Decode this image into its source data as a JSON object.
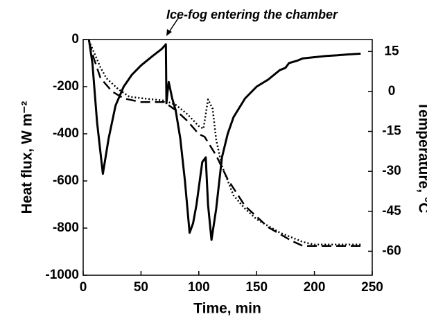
{
  "chart_data": {
    "type": "line",
    "annotation": "Ice-fog entering the chamber",
    "x_label": "Time, min",
    "y_label": "Heat flux, W m⁻²",
    "y2_label": "Temperature, °C",
    "xlim": [
      0,
      250
    ],
    "xticks": [
      0,
      50,
      100,
      150,
      200,
      250
    ],
    "ylim": [
      -1000,
      0
    ],
    "yticks": [
      0,
      -200,
      -400,
      -600,
      -800,
      -1000
    ],
    "y2lim": [
      -69,
      19.5
    ],
    "y2ticks": [
      15,
      0,
      -15,
      -30,
      -45,
      -60
    ],
    "series": [
      {
        "color": "#000000",
        "style": "solid",
        "x": [
          5,
          8,
          12,
          17,
          22,
          28,
          35,
          42,
          50,
          60,
          68,
          71.5,
          72,
          73,
          74,
          77,
          80,
          84,
          88,
          92,
          95,
          98,
          103,
          106,
          108,
          111,
          115,
          120,
          125,
          130,
          140,
          150,
          160,
          165,
          170,
          175,
          178,
          185,
          190,
          200,
          210,
          220,
          230,
          240
        ],
        "values": [
          0,
          -100,
          -350,
          -570,
          -420,
          -280,
          -200,
          -150,
          -110,
          -70,
          -40,
          -20,
          -270,
          -220,
          -180,
          -250,
          -300,
          -420,
          -600,
          -820,
          -780,
          -700,
          -520,
          -500,
          -700,
          -850,
          -720,
          -500,
          -400,
          -330,
          -250,
          -200,
          -170,
          -150,
          -130,
          -120,
          -100,
          -90,
          -80,
          -75,
          -70,
          -67,
          -63,
          -60
        ]
      },
      {
        "color": "#000000",
        "style": "dotted",
        "axis": "y2",
        "x": [
          5,
          10,
          15,
          20,
          30,
          40,
          50,
          60,
          70,
          80,
          90,
          100,
          104,
          108,
          112,
          115,
          120,
          130,
          140,
          150,
          170,
          190,
          200,
          220,
          240
        ],
        "values": [
          19,
          14,
          9,
          5,
          1,
          -2,
          -2.5,
          -3,
          -3.4,
          -5,
          -8.5,
          -13,
          -14,
          -3,
          -6.5,
          -18,
          -28,
          -39,
          -44,
          -48,
          -53,
          -56.5,
          -57.5,
          -57.5,
          -57.5
        ]
      },
      {
        "color": "#000000",
        "style": "dashed",
        "axis": "y2",
        "x": [
          5,
          8,
          15,
          25,
          35,
          50,
          70,
          80,
          90,
          100,
          105,
          115,
          125,
          140,
          160,
          180,
          190,
          200,
          220,
          240
        ],
        "values": [
          19,
          14,
          5,
          0,
          -2.6,
          -4,
          -4,
          -7,
          -11,
          -16,
          -17,
          -24,
          -33,
          -43,
          -51,
          -56,
          -58,
          -58,
          -58,
          -58
        ]
      }
    ]
  }
}
